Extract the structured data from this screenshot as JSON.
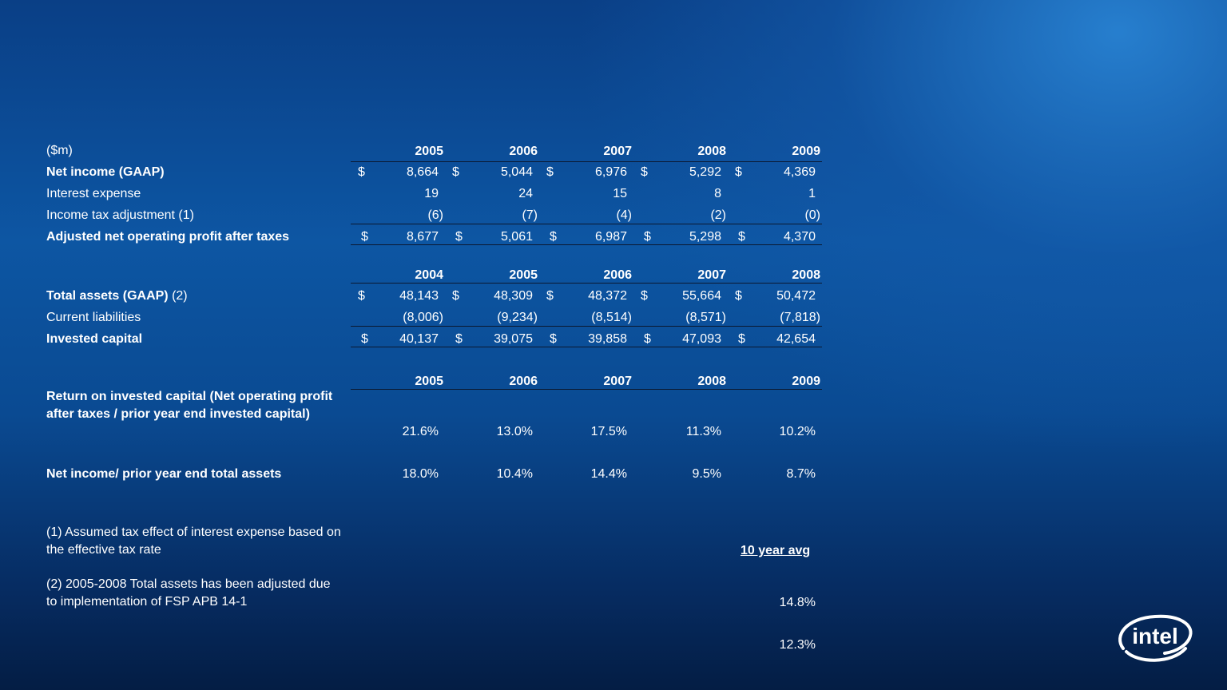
{
  "units_label": "($m)",
  "years_a": [
    "2005",
    "2006",
    "2007",
    "2008",
    "2009"
  ],
  "years_b": [
    "2004",
    "2005",
    "2006",
    "2007",
    "2008"
  ],
  "years_c": [
    "2005",
    "2006",
    "2007",
    "2008",
    "2009"
  ],
  "rows": {
    "net_income": {
      "label": "Net income (GAAP)",
      "values": [
        "8,664",
        "5,044",
        "6,976",
        "5,292",
        "4,369"
      ]
    },
    "interest_expense": {
      "label": "Interest expense",
      "values": [
        "19",
        "24",
        "15",
        "8",
        "1"
      ]
    },
    "income_tax_adj": {
      "label": "Income tax adjustment (1)",
      "values": [
        "(6)",
        "(7)",
        "(4)",
        "(2)",
        "(0)"
      ]
    },
    "adj_nopat": {
      "label": "Adjusted net operating profit after taxes",
      "values": [
        "8,677",
        "5,061",
        "6,987",
        "5,298",
        "4,370"
      ]
    },
    "total_assets": {
      "label": "Total assets (GAAP)",
      "note": "(2)",
      "values": [
        "48,143",
        "48,309",
        "48,372",
        "55,664",
        "50,472"
      ]
    },
    "current_liabilities": {
      "label": "Current liabilities",
      "values": [
        "(8,006)",
        "(9,234)",
        "(8,514)",
        "(8,571)",
        "(7,818)"
      ]
    },
    "invested_capital": {
      "label": "Invested capital",
      "values": [
        "40,137",
        "39,075",
        "39,858",
        "47,093",
        "42,654"
      ]
    },
    "roic": {
      "label": "Return on invested capital (Net operating profit after taxes /  prior year end invested capital)",
      "values": [
        "21.6%",
        "13.0%",
        "17.5%",
        "11.3%",
        "10.2%"
      ]
    },
    "ni_assets": {
      "label": "Net income/ prior year end total assets",
      "values": [
        "18.0%",
        "10.4%",
        "14.4%",
        "9.5%",
        "8.7%"
      ]
    }
  },
  "currency_symbol": "$",
  "footnote_1": "(1)  Assumed tax effect of interest expense based on the effective tax rate",
  "footnote_2": "(2) 2005-2008 Total assets has been adjusted due to implementation of FSP APB 14-1",
  "ten_year_avg": {
    "label": "10 year avg ",
    "roic": "14.8%",
    "ni_assets": "12.3%"
  },
  "logo_text": "intel"
}
